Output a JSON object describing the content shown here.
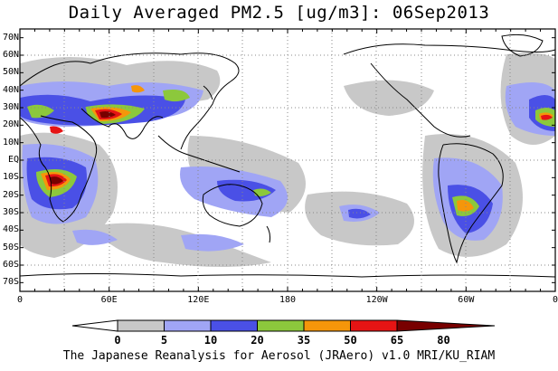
{
  "title": "Daily Averaged PM2.5 [ug/m3]: 06Sep2013",
  "footer": "The Japanese Reanalysis for Aerosol (JRAero) v1.0 MRI/KU_RIAM",
  "lat_labels": [
    "70N",
    "60N",
    "50N",
    "40N",
    "30N",
    "20N",
    "10N",
    "EQ",
    "10S",
    "20S",
    "30S",
    "40S",
    "50S",
    "60S",
    "70S"
  ],
  "lon_labels": [
    "0",
    "60E",
    "120E",
    "180",
    "120W",
    "60W",
    "0"
  ],
  "colorbar": {
    "ticks": [
      "0",
      "5",
      "10",
      "20",
      "35",
      "50",
      "65",
      "80"
    ],
    "colors": [
      "#ffffff",
      "#c8c8c8",
      "#a0a5f5",
      "#4a50e6",
      "#8cc83c",
      "#f5960a",
      "#e61414",
      "#780000"
    ]
  },
  "map": {
    "projection": "equirectangular",
    "lon_range": [
      0,
      360
    ],
    "lat_range": [
      -75,
      75
    ],
    "grid": "dotted 30° lines",
    "shading": "PM2.5 concentration contours"
  }
}
